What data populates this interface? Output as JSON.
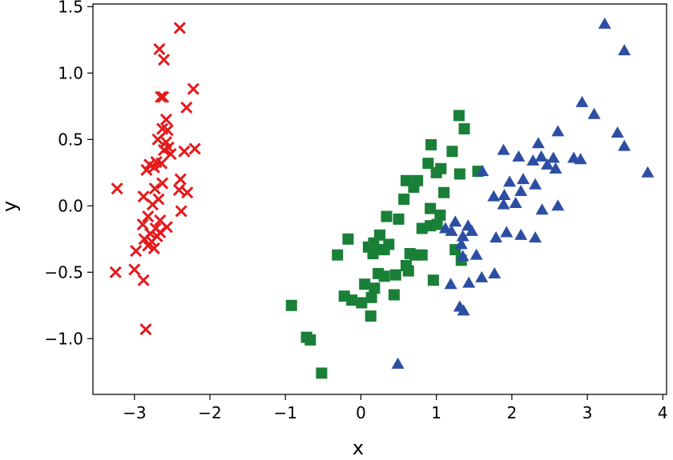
{
  "chart_data": {
    "type": "scatter",
    "title": "",
    "xlabel": "x",
    "ylabel": "y",
    "xlim": [
      -3.55,
      4.05
    ],
    "ylim": [
      -1.42,
      1.52
    ],
    "xticks": [
      -3,
      -2,
      -1,
      0,
      1,
      2,
      3,
      4
    ],
    "xtick_labels": [
      "−3",
      "−2",
      "−1",
      "0",
      "1",
      "2",
      "3",
      "4"
    ],
    "yticks": [
      -1.0,
      -0.5,
      0.0,
      0.5,
      1.0,
      1.5
    ],
    "ytick_labels": [
      "−1.0",
      "−0.5",
      "0.0",
      "0.5",
      "1.0",
      "1.5"
    ],
    "grid": false,
    "legend": "none",
    "series": [
      {
        "marker": "x",
        "color": "#e41a1c",
        "points": [
          [
            -2.4,
            1.34
          ],
          [
            -2.67,
            1.18
          ],
          [
            -2.61,
            1.1
          ],
          [
            -2.22,
            0.88
          ],
          [
            -2.65,
            0.82
          ],
          [
            -2.62,
            0.82
          ],
          [
            -2.31,
            0.74
          ],
          [
            -2.58,
            0.65
          ],
          [
            -2.63,
            0.58
          ],
          [
            -2.56,
            0.57
          ],
          [
            -2.69,
            0.5
          ],
          [
            -2.58,
            0.48
          ],
          [
            -2.55,
            0.44
          ],
          [
            -2.2,
            0.43
          ],
          [
            -2.61,
            0.42
          ],
          [
            -2.34,
            0.41
          ],
          [
            -2.52,
            0.39
          ],
          [
            -2.71,
            0.33
          ],
          [
            -2.64,
            0.32
          ],
          [
            -2.8,
            0.31
          ],
          [
            -2.74,
            0.29
          ],
          [
            -2.84,
            0.27
          ],
          [
            -2.39,
            0.2
          ],
          [
            -2.63,
            0.17
          ],
          [
            -2.73,
            0.13
          ],
          [
            -3.23,
            0.13
          ],
          [
            -2.41,
            0.12
          ],
          [
            -2.3,
            0.1
          ],
          [
            -2.68,
            0.05
          ],
          [
            -2.88,
            0.07
          ],
          [
            -2.76,
            0.01
          ],
          [
            -2.38,
            -0.04
          ],
          [
            -2.82,
            -0.08
          ],
          [
            -2.66,
            -0.11
          ],
          [
            -2.89,
            -0.14
          ],
          [
            -2.72,
            -0.17
          ],
          [
            -2.57,
            -0.16
          ],
          [
            -2.66,
            -0.2
          ],
          [
            -2.79,
            -0.21
          ],
          [
            -2.7,
            -0.23
          ],
          [
            -2.87,
            -0.25
          ],
          [
            -2.77,
            -0.27
          ],
          [
            -2.82,
            -0.3
          ],
          [
            -2.74,
            -0.32
          ],
          [
            -2.98,
            -0.34
          ],
          [
            -3.25,
            -0.5
          ],
          [
            -3.0,
            -0.48
          ],
          [
            -2.88,
            -0.56
          ],
          [
            -2.85,
            -0.93
          ]
        ]
      },
      {
        "marker": "s",
        "color": "#1a7f37",
        "points": [
          [
            1.3,
            0.68
          ],
          [
            1.37,
            0.58
          ],
          [
            0.93,
            0.46
          ],
          [
            1.21,
            0.41
          ],
          [
            0.89,
            0.32
          ],
          [
            1.06,
            0.28
          ],
          [
            1.0,
            0.25
          ],
          [
            1.31,
            0.24
          ],
          [
            1.55,
            0.26
          ],
          [
            0.6,
            0.19
          ],
          [
            0.75,
            0.19
          ],
          [
            0.7,
            0.14
          ],
          [
            1.1,
            0.1
          ],
          [
            0.57,
            0.05
          ],
          [
            0.92,
            -0.02
          ],
          [
            1.05,
            -0.07
          ],
          [
            0.34,
            -0.08
          ],
          [
            0.92,
            -0.15
          ],
          [
            1.01,
            -0.14
          ],
          [
            0.5,
            -0.1
          ],
          [
            0.81,
            -0.17
          ],
          [
            0.25,
            -0.22
          ],
          [
            0.17,
            -0.28
          ],
          [
            0.37,
            -0.29
          ],
          [
            -0.17,
            -0.25
          ],
          [
            0.1,
            -0.31
          ],
          [
            0.22,
            -0.33
          ],
          [
            0.16,
            -0.36
          ],
          [
            0.31,
            -0.33
          ],
          [
            1.25,
            -0.33
          ],
          [
            0.65,
            -0.36
          ],
          [
            -0.31,
            -0.37
          ],
          [
            0.72,
            -0.37
          ],
          [
            0.81,
            -0.37
          ],
          [
            1.33,
            -0.41
          ],
          [
            0.6,
            -0.45
          ],
          [
            0.23,
            -0.51
          ],
          [
            0.46,
            -0.52
          ],
          [
            0.63,
            -0.49
          ],
          [
            0.31,
            -0.53
          ],
          [
            0.96,
            -0.56
          ],
          [
            0.05,
            -0.59
          ],
          [
            0.18,
            -0.62
          ],
          [
            -0.22,
            -0.68
          ],
          [
            0.14,
            -0.69
          ],
          [
            -0.12,
            -0.71
          ],
          [
            0.01,
            -0.73
          ],
          [
            0.44,
            -0.67
          ],
          [
            -0.92,
            -0.75
          ],
          [
            0.13,
            -0.83
          ],
          [
            -0.72,
            -0.99
          ],
          [
            -0.67,
            -1.01
          ],
          [
            -0.52,
            -1.26
          ]
        ]
      },
      {
        "marker": "^",
        "color": "#2c4ea3",
        "points": [
          [
            3.23,
            1.37
          ],
          [
            3.49,
            1.17
          ],
          [
            2.93,
            0.78
          ],
          [
            3.09,
            0.69
          ],
          [
            2.61,
            0.56
          ],
          [
            3.4,
            0.55
          ],
          [
            2.35,
            0.47
          ],
          [
            3.49,
            0.45
          ],
          [
            1.89,
            0.42
          ],
          [
            2.09,
            0.37
          ],
          [
            2.39,
            0.37
          ],
          [
            2.55,
            0.36
          ],
          [
            2.82,
            0.36
          ],
          [
            2.91,
            0.35
          ],
          [
            2.28,
            0.34
          ],
          [
            2.47,
            0.31
          ],
          [
            2.58,
            0.28
          ],
          [
            3.8,
            0.25
          ],
          [
            1.61,
            0.26
          ],
          [
            2.15,
            0.2
          ],
          [
            1.97,
            0.18
          ],
          [
            2.31,
            0.16
          ],
          [
            2.12,
            0.11
          ],
          [
            1.9,
            0.08
          ],
          [
            1.76,
            0.07
          ],
          [
            1.89,
            0.01
          ],
          [
            2.05,
            0.02
          ],
          [
            2.61,
            0.0
          ],
          [
            2.4,
            -0.03
          ],
          [
            1.25,
            -0.12
          ],
          [
            1.42,
            -0.15
          ],
          [
            1.12,
            -0.17
          ],
          [
            1.2,
            -0.19
          ],
          [
            1.47,
            -0.19
          ],
          [
            1.35,
            -0.23
          ],
          [
            1.93,
            -0.2
          ],
          [
            2.12,
            -0.22
          ],
          [
            1.79,
            -0.24
          ],
          [
            2.31,
            -0.24
          ],
          [
            1.33,
            -0.29
          ],
          [
            1.53,
            -0.37
          ],
          [
            1.35,
            -0.38
          ],
          [
            1.77,
            -0.51
          ],
          [
            1.6,
            -0.54
          ],
          [
            1.19,
            -0.59
          ],
          [
            1.43,
            -0.58
          ],
          [
            1.31,
            -0.76
          ],
          [
            1.36,
            -0.79
          ],
          [
            0.49,
            -1.19
          ]
        ]
      }
    ]
  }
}
